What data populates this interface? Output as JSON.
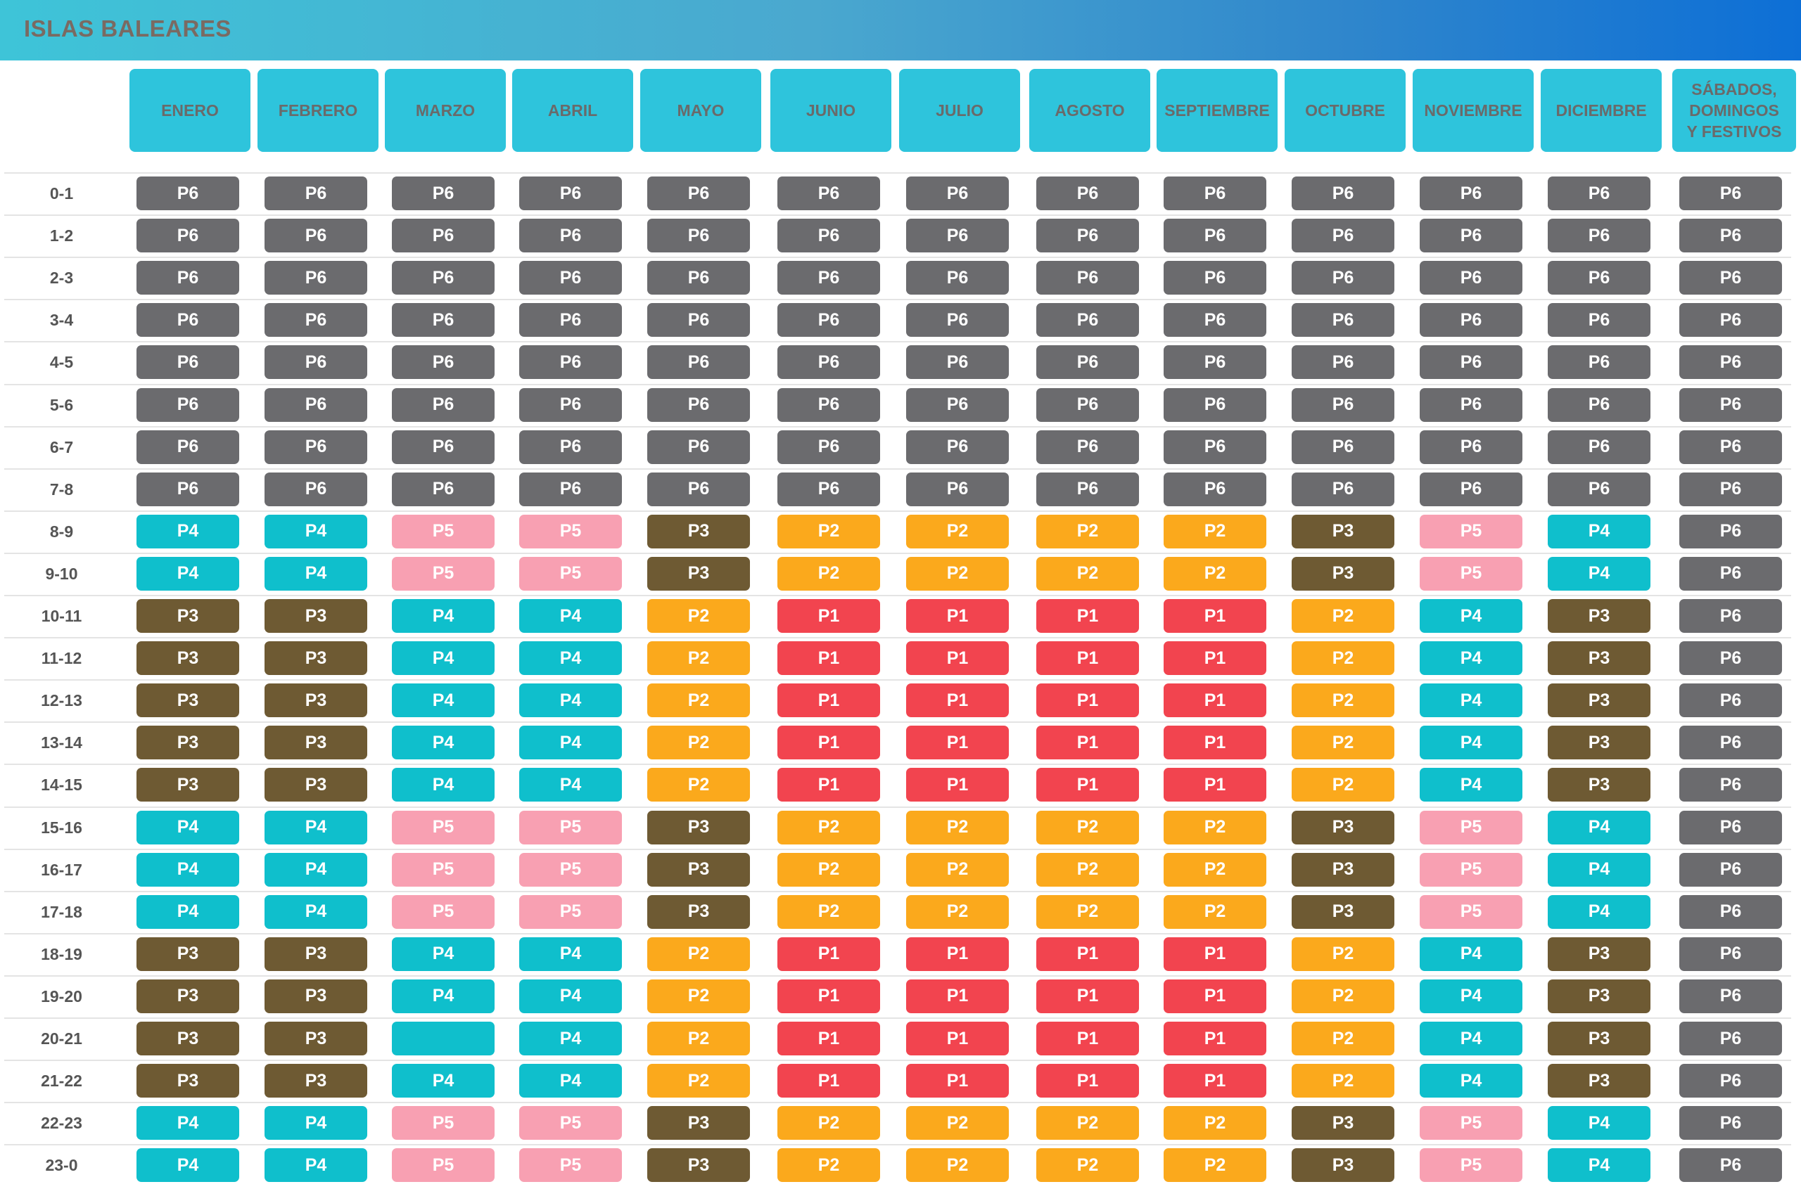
{
  "header": {
    "title": "ISLAS BALEARES"
  },
  "columns": [
    "ENERO",
    "FEBRERO",
    "MARZO",
    "ABRIL",
    "MAYO",
    "JUNIO",
    "JULIO",
    "AGOSTO",
    "SEPTIEMBRE",
    "OCTUBRE",
    "NOVIEMBRE",
    "DICIEMBRE",
    "SÁBADOS,\nDOMINGOS\nY FESTIVOS"
  ],
  "colors": {
    "P1": "#f2444f",
    "P2": "#fba91c",
    "P3": "#6e5a33",
    "P4": "#0fbfcc",
    "P5": "#f8a0b2",
    "P6": "#6b6b6e",
    "header_cell": "#2ec4dc"
  },
  "rows": [
    {
      "hour": "0-1",
      "cells": [
        "P6",
        "P6",
        "P6",
        "P6",
        "P6",
        "P6",
        "P6",
        "P6",
        "P6",
        "P6",
        "P6",
        "P6",
        "P6"
      ]
    },
    {
      "hour": "1-2",
      "cells": [
        "P6",
        "P6",
        "P6",
        "P6",
        "P6",
        "P6",
        "P6",
        "P6",
        "P6",
        "P6",
        "P6",
        "P6",
        "P6"
      ]
    },
    {
      "hour": "2-3",
      "cells": [
        "P6",
        "P6",
        "P6",
        "P6",
        "P6",
        "P6",
        "P6",
        "P6",
        "P6",
        "P6",
        "P6",
        "P6",
        "P6"
      ]
    },
    {
      "hour": "3-4",
      "cells": [
        "P6",
        "P6",
        "P6",
        "P6",
        "P6",
        "P6",
        "P6",
        "P6",
        "P6",
        "P6",
        "P6",
        "P6",
        "P6"
      ]
    },
    {
      "hour": "4-5",
      "cells": [
        "P6",
        "P6",
        "P6",
        "P6",
        "P6",
        "P6",
        "P6",
        "P6",
        "P6",
        "P6",
        "P6",
        "P6",
        "P6"
      ]
    },
    {
      "hour": "5-6",
      "cells": [
        "P6",
        "P6",
        "P6",
        "P6",
        "P6",
        "P6",
        "P6",
        "P6",
        "P6",
        "P6",
        "P6",
        "P6",
        "P6"
      ]
    },
    {
      "hour": "6-7",
      "cells": [
        "P6",
        "P6",
        "P6",
        "P6",
        "P6",
        "P6",
        "P6",
        "P6",
        "P6",
        "P6",
        "P6",
        "P6",
        "P6"
      ]
    },
    {
      "hour": "7-8",
      "cells": [
        "P6",
        "P6",
        "P6",
        "P6",
        "P6",
        "P6",
        "P6",
        "P6",
        "P6",
        "P6",
        "P6",
        "P6",
        "P6"
      ]
    },
    {
      "hour": "8-9",
      "cells": [
        "P4",
        "P4",
        "P5",
        "P5",
        "P3",
        "P2",
        "P2",
        "P2",
        "P2",
        "P3",
        "P5",
        "P4",
        "P6"
      ]
    },
    {
      "hour": "9-10",
      "cells": [
        "P4",
        "P4",
        "P5",
        "P5",
        "P3",
        "P2",
        "P2",
        "P2",
        "P2",
        "P3",
        "P5",
        "P4",
        "P6"
      ]
    },
    {
      "hour": "10-11",
      "cells": [
        "P3",
        "P3",
        "P4",
        "P4",
        "P2",
        "P1",
        "P1",
        "P1",
        "P1",
        "P2",
        "P4",
        "P3",
        "P6"
      ]
    },
    {
      "hour": "11-12",
      "cells": [
        "P3",
        "P3",
        "P4",
        "P4",
        "P2",
        "P1",
        "P1",
        "P1",
        "P1",
        "P2",
        "P4",
        "P3",
        "P6"
      ]
    },
    {
      "hour": "12-13",
      "cells": [
        "P3",
        "P3",
        "P4",
        "P4",
        "P2",
        "P1",
        "P1",
        "P1",
        "P1",
        "P2",
        "P4",
        "P3",
        "P6"
      ]
    },
    {
      "hour": "13-14",
      "cells": [
        "P3",
        "P3",
        "P4",
        "P4",
        "P2",
        "P1",
        "P1",
        "P1",
        "P1",
        "P2",
        "P4",
        "P3",
        "P6"
      ]
    },
    {
      "hour": "14-15",
      "cells": [
        "P3",
        "P3",
        "P4",
        "P4",
        "P2",
        "P1",
        "P1",
        "P1",
        "P1",
        "P2",
        "P4",
        "P3",
        "P6"
      ]
    },
    {
      "hour": "15-16",
      "cells": [
        "P4",
        "P4",
        "P5",
        "P5",
        "P3",
        "P2",
        "P2",
        "P2",
        "P2",
        "P3",
        "P5",
        "P4",
        "P6"
      ]
    },
    {
      "hour": "16-17",
      "cells": [
        "P4",
        "P4",
        "P5",
        "P5",
        "P3",
        "P2",
        "P2",
        "P2",
        "P2",
        "P3",
        "P5",
        "P4",
        "P6"
      ]
    },
    {
      "hour": "17-18",
      "cells": [
        "P4",
        "P4",
        "P5",
        "P5",
        "P3",
        "P2",
        "P2",
        "P2",
        "P2",
        "P3",
        "P5",
        "P4",
        "P6"
      ]
    },
    {
      "hour": "18-19",
      "cells": [
        "P3",
        "P3",
        "P4",
        "P4",
        "P2",
        "P1",
        "P1",
        "P1",
        "P1",
        "P2",
        "P4",
        "P3",
        "P6"
      ]
    },
    {
      "hour": "19-20",
      "cells": [
        "P3",
        "P3",
        "P4",
        "P4",
        "P2",
        "P1",
        "P1",
        "P1",
        "P1",
        "P2",
        "P4",
        "P3",
        "P6"
      ]
    },
    {
      "hour": "20-21",
      "cells": [
        "P3",
        "P3",
        "",
        "P4",
        "P2",
        "P1",
        "P1",
        "P1",
        "P1",
        "P2",
        "P4",
        "P3",
        "P6"
      ]
    },
    {
      "hour": "21-22",
      "cells": [
        "P3",
        "P3",
        "P4",
        "P4",
        "P2",
        "P1",
        "P1",
        "P1",
        "P1",
        "P2",
        "P4",
        "P3",
        "P6"
      ]
    },
    {
      "hour": "22-23",
      "cells": [
        "P4",
        "P4",
        "P5",
        "P5",
        "P3",
        "P2",
        "P2",
        "P2",
        "P2",
        "P3",
        "P5",
        "P4",
        "P6"
      ]
    },
    {
      "hour": "23-0",
      "cells": [
        "P4",
        "P4",
        "P5",
        "P5",
        "P3",
        "P2",
        "P2",
        "P2",
        "P2",
        "P3",
        "P5",
        "P4",
        "P6"
      ]
    }
  ]
}
